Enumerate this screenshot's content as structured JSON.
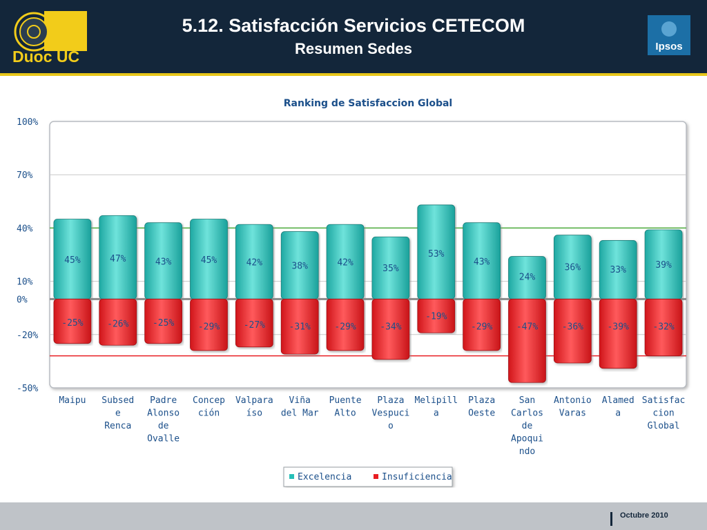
{
  "header": {
    "title": "5.12. Satisfacción Servicios CETECOM",
    "subtitle": "Resumen Sedes",
    "logo_left": "Duoc UC",
    "logo_right": "Ipsos"
  },
  "footer": {
    "date": "Octubre 2010"
  },
  "colors": {
    "header_bg": "#13263a",
    "accent_line": "#e8c619",
    "excelencia": "#27bfb8",
    "insuficiencia": "#e81d22",
    "reference_high": "#4caa3a",
    "reference_low": "#e81d22"
  },
  "chart_data": {
    "type": "bar",
    "title": "Ranking de Satisfaccion Global",
    "xlabel": "",
    "ylabel": "",
    "ylim": [
      -50,
      100
    ],
    "yticks": [
      {
        "value": 100,
        "label": "100%"
      },
      {
        "value": 70,
        "label": "70%"
      },
      {
        "value": 40,
        "label": "40%"
      },
      {
        "value": 10,
        "label": "10%"
      },
      {
        "value": 0,
        "label": "0%"
      },
      {
        "value": -20,
        "label": "-20%"
      },
      {
        "value": -50,
        "label": "-50%"
      }
    ],
    "reference_lines": [
      40,
      -32
    ],
    "grid": true,
    "legend_position": "bottom-center",
    "categories": [
      [
        "Maipu"
      ],
      [
        "Subsed",
        "e",
        "Renca"
      ],
      [
        "Padre",
        "Alonso",
        "de",
        "Ovalle"
      ],
      [
        "Concep",
        "ción"
      ],
      [
        "Valpara",
        "íso"
      ],
      [
        "Viña",
        "del Mar"
      ],
      [
        "Puente",
        "Alto"
      ],
      [
        "Plaza",
        "Vespuci",
        "o"
      ],
      [
        "Melipill",
        "a"
      ],
      [
        "Plaza",
        "Oeste"
      ],
      [
        "San",
        "Carlos",
        "de",
        "Apoqui",
        "ndo"
      ],
      [
        "Antonio",
        "Varas"
      ],
      [
        "Alamed",
        "a"
      ],
      [
        "Satisfac",
        "cion",
        "Global"
      ]
    ],
    "series": [
      {
        "name": "Excelencia",
        "values": [
          45,
          47,
          43,
          45,
          42,
          38,
          42,
          35,
          53,
          43,
          24,
          36,
          33,
          39
        ],
        "labels": [
          "45%",
          "47%",
          "43%",
          "45%",
          "42%",
          "38%",
          "42%",
          "35%",
          "53%",
          "43%",
          "24%",
          "36%",
          "33%",
          "39%"
        ]
      },
      {
        "name": "Insuficiencia",
        "values": [
          -25,
          -26,
          -25,
          -29,
          -27,
          -31,
          -29,
          -34,
          -19,
          -29,
          -47,
          -36,
          -39,
          -32
        ],
        "labels": [
          "-25%",
          "-26%",
          "-25%",
          "-29%",
          "-27%",
          "-31%",
          "-29%",
          "-34%",
          "-19%",
          "-29%",
          "-47%",
          "-36%",
          "-39%",
          "-32%"
        ]
      }
    ]
  }
}
